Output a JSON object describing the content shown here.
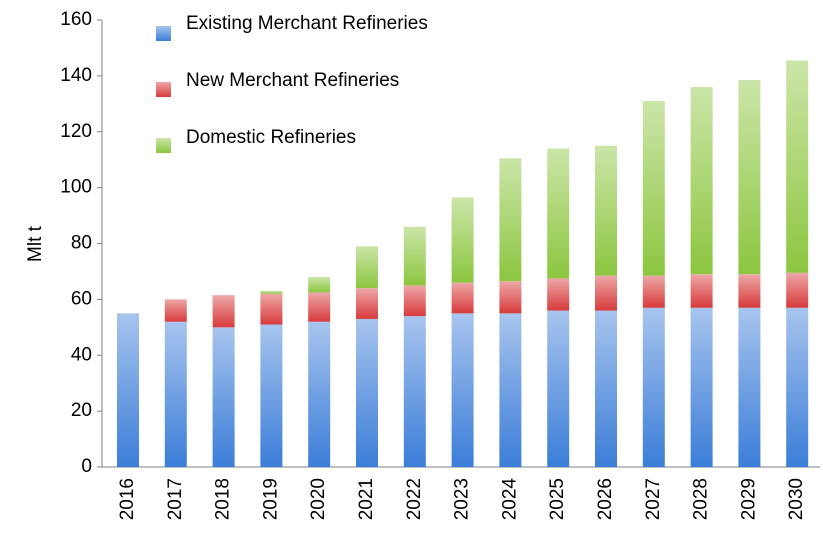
{
  "chart_data": {
    "type": "stacked_bar",
    "y_label": "Mlt t",
    "categories": [
      "2016",
      "2017",
      "2018",
      "2019",
      "2020",
      "2021",
      "2022",
      "2023",
      "2024",
      "2025",
      "2026",
      "2027",
      "2028",
      "2029",
      "2030"
    ],
    "series": [
      {
        "name": "Existing Merchant Refineries",
        "color": "#3b7dd8",
        "values": [
          55,
          52,
          50,
          51,
          52,
          53,
          54,
          55,
          55,
          56,
          56,
          57,
          57,
          57,
          57
        ]
      },
      {
        "name": "New Merchant Refineries",
        "color": "#d83b3b",
        "values": [
          0,
          8,
          11.5,
          11,
          10.5,
          11,
          11,
          11,
          11.5,
          11.5,
          12.5,
          11.5,
          12,
          12,
          12.5
        ]
      },
      {
        "name": "Domestic Refineries",
        "color": "#8cc63f",
        "values": [
          0,
          0,
          0,
          1,
          5.5,
          15,
          21,
          30.5,
          44,
          46.5,
          46.5,
          62.5,
          67,
          69.5,
          76
        ]
      }
    ],
    "ylim": [
      0,
      160
    ],
    "yticks": [
      0,
      20,
      40,
      60,
      80,
      100,
      120,
      140,
      160
    ]
  }
}
